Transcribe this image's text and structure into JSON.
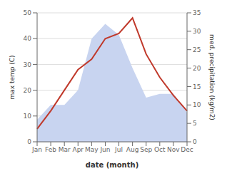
{
  "chart_data": {
    "type": "line",
    "xlabel": "date (month)",
    "ylabel": "max temp (C)",
    "y2label": "med. precipitation (kg/m2)",
    "categories": [
      "Jan",
      "Feb",
      "Mar",
      "Apr",
      "May",
      "Jun",
      "Jul",
      "Aug",
      "Sep",
      "Oct",
      "Nov",
      "Dec"
    ],
    "series": [
      {
        "type": "area",
        "axis": "y2",
        "color": "#c8d4f0",
        "values": [
          6,
          10,
          10,
          14,
          28,
          32,
          29,
          20,
          12,
          13,
          13,
          8
        ]
      },
      {
        "type": "line",
        "color": "#c0392b",
        "values": [
          5,
          12,
          20,
          28,
          32,
          40,
          42,
          48,
          34,
          25,
          18,
          12
        ]
      }
    ],
    "ylim": [
      0,
      50
    ],
    "yticks": [
      0,
      10,
      20,
      30,
      40,
      50
    ],
    "y2lim": [
      0,
      35
    ],
    "y2ticks": [
      0,
      5,
      10,
      15,
      20,
      25,
      30,
      35
    ],
    "grid": true
  }
}
